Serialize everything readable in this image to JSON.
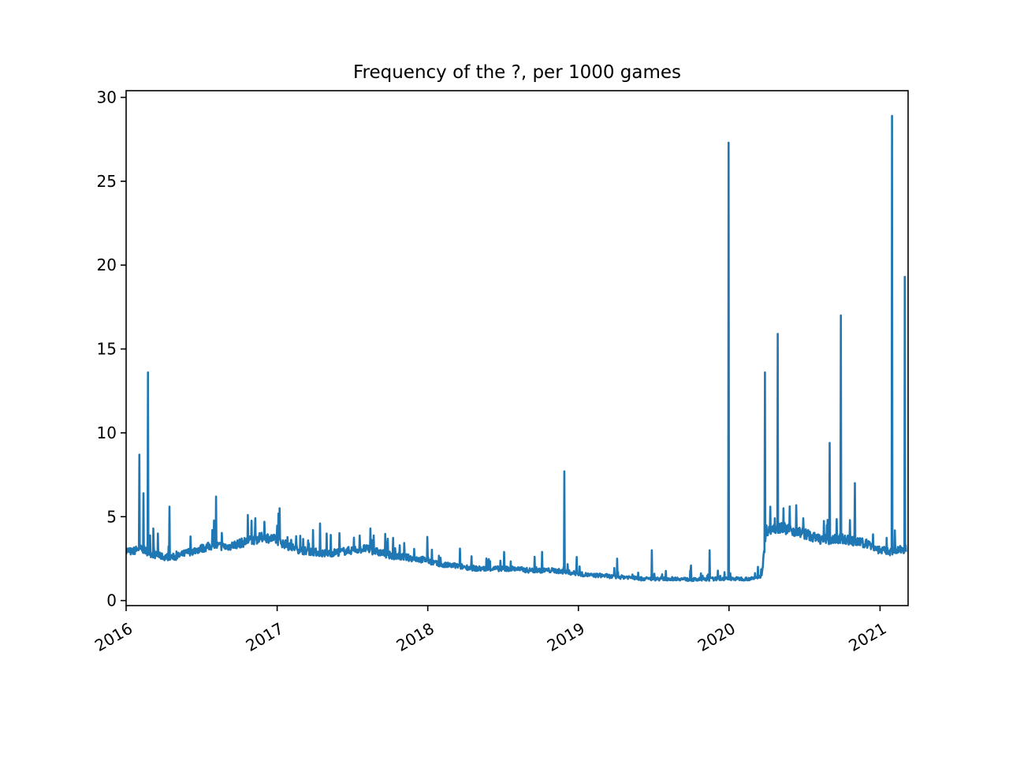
{
  "chart_data": {
    "type": "line",
    "title": "Frequency of the ?, per 1000 games",
    "xlabel": "",
    "ylabel": "",
    "xlim": [
      "2016-01-01",
      "2021-03-10"
    ],
    "ylim": [
      -0.3,
      30.4
    ],
    "x_ticks": [
      "2016",
      "2017",
      "2018",
      "2019",
      "2020",
      "2021"
    ],
    "y_ticks": [
      "0",
      "5",
      "10",
      "15",
      "20",
      "25",
      "30"
    ],
    "grid": false,
    "legend": "none",
    "colors": {
      "line": "#1f77b4"
    },
    "series": [
      {
        "x": [
          "2016-01-01",
          "2016-01-15",
          "2016-02-01",
          "2016-02-15",
          "2016-03-01",
          "2016-03-15",
          "2016-04-01",
          "2016-05-01",
          "2016-06-01",
          "2016-07-01",
          "2016-08-01",
          "2016-09-01",
          "2016-10-01",
          "2016-11-01",
          "2016-12-01",
          "2017-01-01",
          "2017-02-01",
          "2017-03-01",
          "2017-04-01",
          "2017-05-01",
          "2017-06-01",
          "2017-07-01",
          "2017-08-01",
          "2017-09-01",
          "2017-10-01",
          "2017-11-01",
          "2017-12-01",
          "2018-01-01",
          "2018-02-01",
          "2018-03-01",
          "2018-04-01",
          "2018-05-01",
          "2018-06-01",
          "2018-07-01",
          "2018-08-01",
          "2018-09-01",
          "2018-10-01",
          "2018-11-01",
          "2018-12-01",
          "2019-01-01",
          "2019-02-01",
          "2019-03-01",
          "2019-04-01",
          "2019-05-01",
          "2019-06-01",
          "2019-07-01",
          "2019-08-01",
          "2019-09-01",
          "2019-10-01",
          "2019-11-01",
          "2019-12-01",
          "2020-01-01",
          "2020-02-01",
          "2020-03-01",
          "2020-03-20",
          "2020-04-01",
          "2020-05-01",
          "2020-06-01",
          "2020-07-01",
          "2020-08-01",
          "2020-09-01",
          "2020-10-01",
          "2020-11-01",
          "2020-12-01",
          "2021-01-01",
          "2021-02-01",
          "2021-03-05"
        ],
        "values": [
          3.0,
          2.9,
          3.1,
          3.0,
          2.8,
          2.7,
          2.6,
          2.6,
          2.9,
          3.1,
          3.3,
          3.2,
          3.4,
          3.6,
          3.8,
          3.6,
          3.2,
          3.0,
          2.9,
          2.8,
          2.9,
          3.0,
          3.1,
          2.9,
          2.7,
          2.6,
          2.5,
          2.4,
          2.1,
          2.1,
          2.0,
          1.9,
          1.9,
          1.9,
          1.9,
          1.8,
          1.8,
          1.8,
          1.7,
          1.6,
          1.5,
          1.5,
          1.4,
          1.4,
          1.3,
          1.3,
          1.3,
          1.3,
          1.25,
          1.25,
          1.3,
          1.3,
          1.3,
          1.3,
          1.5,
          4.2,
          4.4,
          4.2,
          4.0,
          3.7,
          3.6,
          3.7,
          3.5,
          3.4,
          3.0,
          2.9,
          3.1
        ],
        "spikes": [
          {
            "x": "2016-02-02",
            "y": 8.7
          },
          {
            "x": "2016-02-12",
            "y": 6.4
          },
          {
            "x": "2016-02-23",
            "y": 13.6
          },
          {
            "x": "2016-03-07",
            "y": 4.3
          },
          {
            "x": "2016-03-18",
            "y": 4.0
          },
          {
            "x": "2016-04-15",
            "y": 5.6
          },
          {
            "x": "2016-08-06",
            "y": 6.2
          },
          {
            "x": "2016-10-22",
            "y": 5.1
          },
          {
            "x": "2016-12-01",
            "y": 4.7
          },
          {
            "x": "2017-01-07",
            "y": 5.5
          },
          {
            "x": "2017-04-15",
            "y": 4.6
          },
          {
            "x": "2017-05-01",
            "y": 4.0
          },
          {
            "x": "2017-08-15",
            "y": 4.3
          },
          {
            "x": "2017-10-25",
            "y": 3.3
          },
          {
            "x": "2017-12-31",
            "y": 3.8
          },
          {
            "x": "2018-03-20",
            "y": 3.1
          },
          {
            "x": "2018-07-05",
            "y": 2.9
          },
          {
            "x": "2018-10-05",
            "y": 2.9
          },
          {
            "x": "2018-11-28",
            "y": 7.7
          },
          {
            "x": "2018-12-28",
            "y": 2.6
          },
          {
            "x": "2019-04-05",
            "y": 2.5
          },
          {
            "x": "2019-06-28",
            "y": 3.0
          },
          {
            "x": "2019-10-01",
            "y": 2.1
          },
          {
            "x": "2019-11-15",
            "y": 3.0
          },
          {
            "x": "2019-12-31",
            "y": 27.3
          },
          {
            "x": "2020-03-28",
            "y": 13.6
          },
          {
            "x": "2020-04-10",
            "y": 5.6
          },
          {
            "x": "2020-04-28",
            "y": 15.9
          },
          {
            "x": "2020-05-12",
            "y": 5.5
          },
          {
            "x": "2020-08-25",
            "y": 4.5
          },
          {
            "x": "2020-09-01",
            "y": 9.4
          },
          {
            "x": "2020-09-28",
            "y": 17.0
          },
          {
            "x": "2020-10-20",
            "y": 4.8
          },
          {
            "x": "2020-11-01",
            "y": 7.0
          },
          {
            "x": "2021-01-30",
            "y": 28.9
          },
          {
            "x": "2021-03-02",
            "y": 19.3
          }
        ]
      }
    ]
  }
}
